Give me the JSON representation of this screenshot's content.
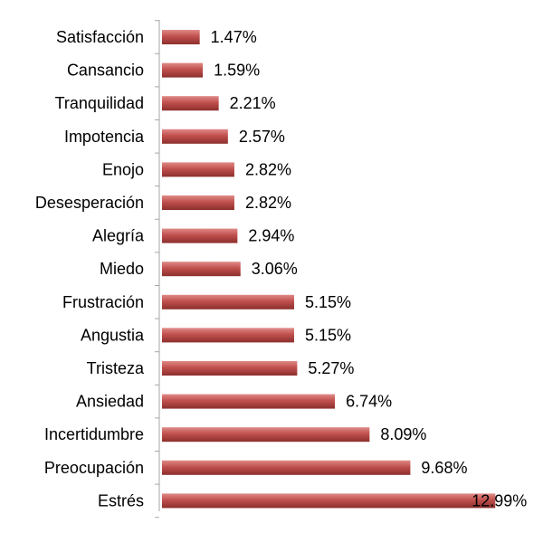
{
  "chart_data": {
    "type": "bar",
    "orientation": "horizontal",
    "categories": [
      "Satisfacción",
      "Cansancio",
      "Tranquilidad",
      "Impotencia",
      "Enojo",
      "Desesperación",
      "Alegría",
      "Miedo",
      "Frustración",
      "Angustia",
      "Tristeza",
      "Ansiedad",
      "Incertidumbre",
      "Preocupación",
      "Estrés"
    ],
    "values": [
      1.47,
      1.59,
      2.21,
      2.57,
      2.82,
      2.82,
      2.94,
      3.06,
      5.15,
      5.15,
      5.27,
      6.74,
      8.09,
      9.68,
      12.99
    ],
    "value_labels": [
      "1.47%",
      "1.59%",
      "2.21%",
      "2.57%",
      "2.82%",
      "2.82%",
      "2.94%",
      "3.06%",
      "5.15%",
      "5.15%",
      "5.27%",
      "6.74%",
      "8.09%",
      "9.68%",
      "12.99%"
    ],
    "xlim": [
      0,
      13
    ],
    "bar_color": "#c0504d",
    "bar_highlight": "#e08a88",
    "bar_shadow": "#8c2f2d",
    "axis_color": "#a6a6a6",
    "grid": false,
    "legend": "none",
    "title": "",
    "xlabel": "",
    "ylabel": ""
  }
}
